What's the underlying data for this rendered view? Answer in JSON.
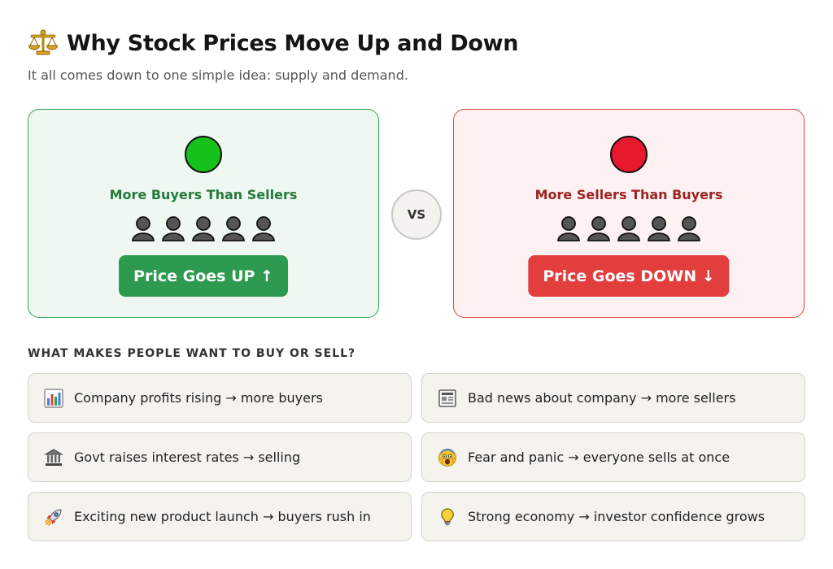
{
  "header": {
    "icon": "balance-scale-icon",
    "title": "Why Stock Prices Move Up and Down",
    "subtitle": "It all comes down to one simple idea: supply and demand."
  },
  "panels": {
    "buy": {
      "indicator_color": "#16c21a",
      "heading": "More Buyers Than Sellers",
      "people_icon": "person-icon",
      "people_count": 5,
      "result": "Price Goes UP ↑",
      "accent": "#2e9a4f"
    },
    "vs": "VS",
    "sell": {
      "indicator_color": "#e8192c",
      "heading": "More Sellers Than Buyers",
      "people_icon": "person-icon",
      "people_count": 5,
      "result": "Price Goes DOWN ↓",
      "accent": "#e23e3e"
    }
  },
  "factors": {
    "heading": "WHAT MAKES PEOPLE WANT TO BUY OR SELL?",
    "items": [
      {
        "icon": "bar-chart-icon",
        "text": "Company profits rising → more buyers"
      },
      {
        "icon": "newspaper-icon",
        "text": "Bad news about company → more sellers"
      },
      {
        "icon": "bank-icon",
        "text": "Govt raises interest rates → selling"
      },
      {
        "icon": "scared-face-icon",
        "text": "Fear and panic → everyone sells at once"
      },
      {
        "icon": "rocket-icon",
        "text": "Exciting new product launch → buyers rush in"
      },
      {
        "icon": "lightbulb-icon",
        "text": "Strong economy → investor confidence grows"
      }
    ]
  }
}
